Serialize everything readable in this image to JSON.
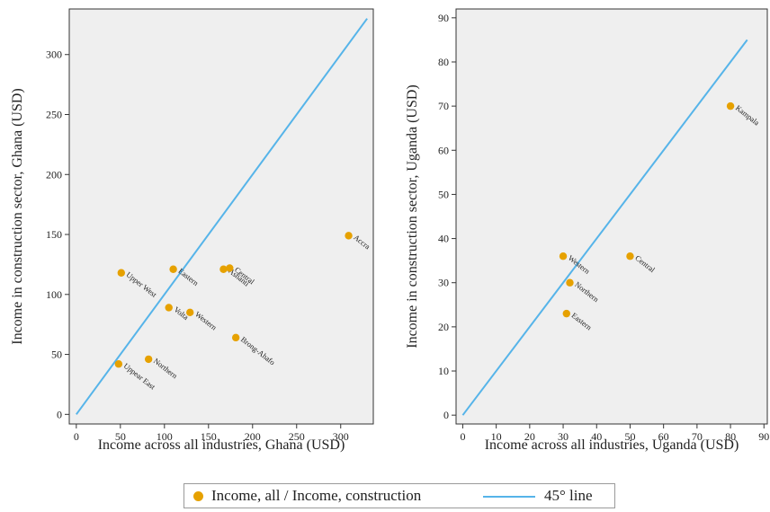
{
  "chart_data": [
    {
      "type": "scatter",
      "xlabel": "Income across all industries, Ghana (USD)",
      "ylabel": "Income in construction sector, Ghana (USD)",
      "xlim": [
        -8,
        337
      ],
      "ylim": [
        -8,
        338
      ],
      "xticks": [
        0,
        50,
        100,
        150,
        200,
        250,
        300
      ],
      "yticks": [
        0,
        50,
        100,
        150,
        200,
        250,
        300
      ],
      "grid": false,
      "reference_line": {
        "from": [
          0,
          0
        ],
        "to": [
          330,
          330
        ]
      },
      "points": [
        {
          "label": "Upper West",
          "x": 51,
          "y": 118
        },
        {
          "label": "Eastern",
          "x": 110,
          "y": 121
        },
        {
          "label": "Ashanti",
          "x": 167,
          "y": 121
        },
        {
          "label": "Central",
          "x": 174,
          "y": 122
        },
        {
          "label": "Volta",
          "x": 105,
          "y": 89
        },
        {
          "label": "Western",
          "x": 129,
          "y": 85
        },
        {
          "label": "Brong-Ahafo",
          "x": 181,
          "y": 64
        },
        {
          "label": "Northern",
          "x": 82,
          "y": 46
        },
        {
          "label": "Uppear East",
          "x": 48,
          "y": 42
        },
        {
          "label": "Accra",
          "x": 309,
          "y": 149
        }
      ]
    },
    {
      "type": "scatter",
      "xlabel": "Income across all industries, Uganda (USD)",
      "ylabel": "Income in construction sector, Uganda (USD)",
      "xlim": [
        -2,
        91
      ],
      "ylim": [
        -2,
        92
      ],
      "xticks": [
        0,
        10,
        20,
        30,
        40,
        50,
        60,
        70,
        80,
        90
      ],
      "yticks": [
        0,
        10,
        20,
        30,
        40,
        50,
        60,
        70,
        80,
        90
      ],
      "grid": false,
      "reference_line": {
        "from": [
          0,
          0
        ],
        "to": [
          85,
          85
        ]
      },
      "points": [
        {
          "label": "Kampala",
          "x": 80,
          "y": 70
        },
        {
          "label": "Western",
          "x": 30,
          "y": 36
        },
        {
          "label": "Central",
          "x": 50,
          "y": 36
        },
        {
          "label": "Northern",
          "x": 32,
          "y": 30
        },
        {
          "label": "Eastern",
          "x": 31,
          "y": 23
        }
      ]
    }
  ],
  "legend": {
    "position": "bottom-center",
    "points_label": "Income, all / Income, construction",
    "line_label": "45° line"
  },
  "colors": {
    "points": "#e6a100",
    "line": "#56b4e9",
    "panel": "#efefef",
    "axis": "#333333"
  }
}
